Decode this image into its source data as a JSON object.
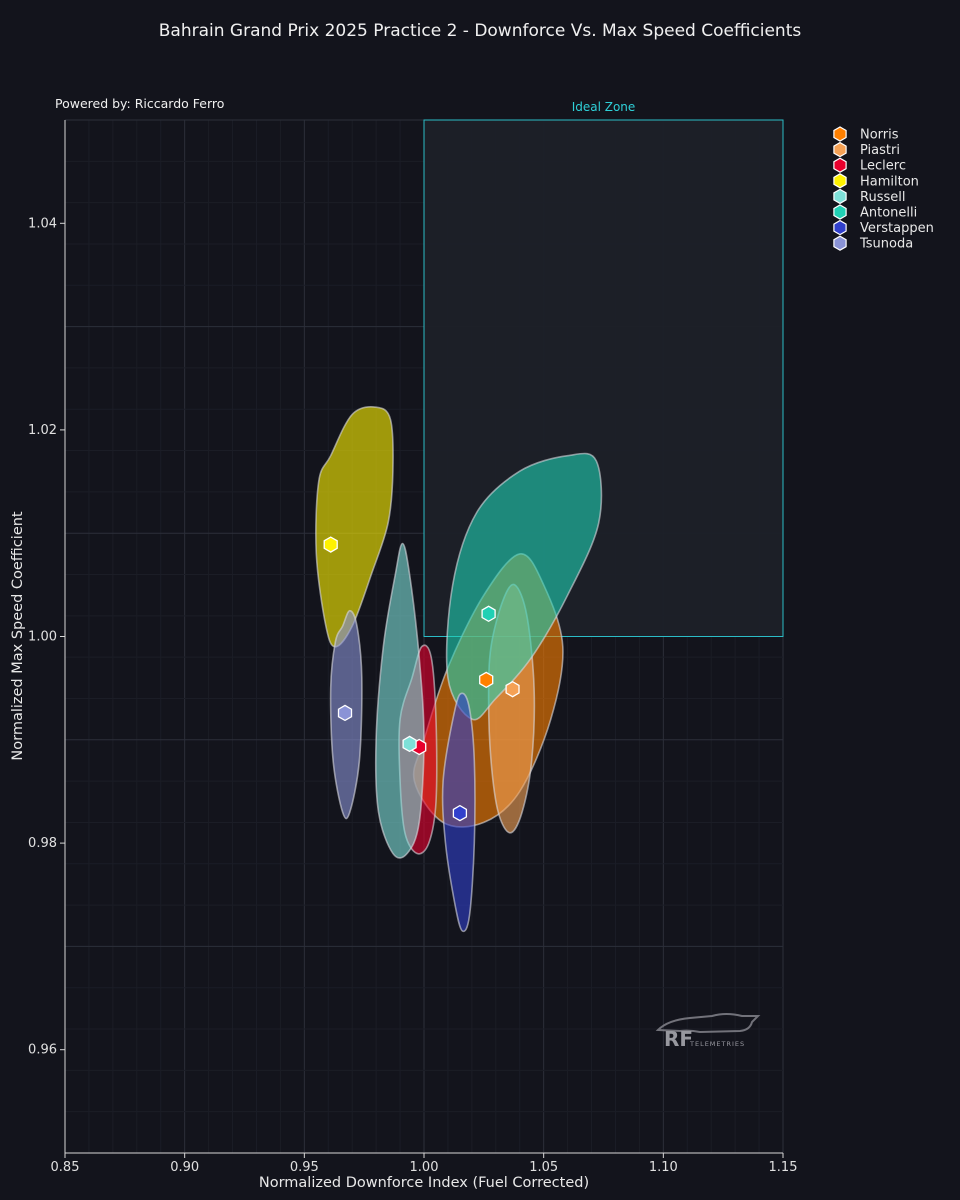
{
  "chart_data": {
    "type": "scatter",
    "title": "Bahrain Grand Prix 2025 Practice 2 - Downforce Vs. Max Speed Coefficients",
    "credit": "Powered by: Riccardo Ferro",
    "xlabel": "Normalized Downforce Index (Fuel Corrected)",
    "ylabel": "Normalized Max Speed Coefficient",
    "xlim": [
      0.85,
      1.15
    ],
    "ylim": [
      0.95,
      1.05
    ],
    "xticks": [
      "0.85",
      "0.90",
      "0.95",
      "1.00",
      "1.05",
      "1.10",
      "1.15"
    ],
    "yticks": [
      "0.96",
      "0.98",
      "1.00",
      "1.02",
      "1.04"
    ],
    "grid": true,
    "legend_position": "top-right",
    "ideal_zone": {
      "label": "Ideal Zone",
      "x": [
        1.0,
        1.15
      ],
      "y": [
        1.0,
        1.05
      ]
    },
    "series": [
      {
        "name": "Norris",
        "color": "#ff8000",
        "x": 1.026,
        "y": 0.9958,
        "region": [
          [
            1.0,
            0.99
          ],
          [
            1.01,
            0.997
          ],
          [
            1.025,
            1.004
          ],
          [
            1.04,
            1.008
          ],
          [
            1.05,
            1.005
          ],
          [
            1.058,
            0.999
          ],
          [
            1.053,
            0.992
          ],
          [
            1.04,
            0.985
          ],
          [
            1.025,
            0.982
          ],
          [
            1.008,
            0.982
          ],
          [
            0.996,
            0.986
          ]
        ]
      },
      {
        "name": "Piastri",
        "color": "#f5a155",
        "x": 1.037,
        "y": 0.9949,
        "region": [
          [
            1.028,
            0.999
          ],
          [
            1.033,
            1.0035
          ],
          [
            1.038,
            1.005
          ],
          [
            1.043,
            1.002
          ],
          [
            1.046,
            0.995
          ],
          [
            1.045,
            0.988
          ],
          [
            1.041,
            0.983
          ],
          [
            1.036,
            0.981
          ],
          [
            1.031,
            0.983
          ],
          [
            1.028,
            0.988
          ],
          [
            1.027,
            0.994
          ]
        ]
      },
      {
        "name": "Leclerc",
        "color": "#e8002d",
        "x": 0.998,
        "y": 0.9893,
        "region": [
          [
            0.995,
            0.996
          ],
          [
            0.999,
            0.999
          ],
          [
            1.003,
            0.998
          ],
          [
            1.005,
            0.992
          ],
          [
            1.005,
            0.984
          ],
          [
            1.002,
            0.98
          ],
          [
            0.997,
            0.979
          ],
          [
            0.992,
            0.981
          ],
          [
            0.99,
            0.986
          ],
          [
            0.99,
            0.992
          ]
        ]
      },
      {
        "name": "Hamilton",
        "color": "#fff200",
        "x": 0.961,
        "y": 1.0089,
        "region": [
          [
            0.961,
            1.0175
          ],
          [
            0.97,
            1.0215
          ],
          [
            0.98,
            1.0222
          ],
          [
            0.986,
            1.021
          ],
          [
            0.987,
            1.016
          ],
          [
            0.985,
            1.011
          ],
          [
            0.978,
            1.006
          ],
          [
            0.97,
            1.001
          ],
          [
            0.963,
            0.999
          ],
          [
            0.959,
            1.001
          ],
          [
            0.955,
            1.008
          ],
          [
            0.956,
            1.015
          ]
        ]
      },
      {
        "name": "Russell",
        "color": "#7ee0d8",
        "x": 0.994,
        "y": 0.9896,
        "region": [
          [
            0.988,
            1.006
          ],
          [
            0.991,
            1.009
          ],
          [
            0.994,
            1.006
          ],
          [
            0.998,
            0.998
          ],
          [
            1.0,
            0.99
          ],
          [
            0.998,
            0.982
          ],
          [
            0.993,
            0.979
          ],
          [
            0.987,
            0.979
          ],
          [
            0.981,
            0.983
          ],
          [
            0.98,
            0.99
          ],
          [
            0.983,
            0.999
          ]
        ]
      },
      {
        "name": "Antonelli",
        "color": "#20d0b4",
        "x": 1.027,
        "y": 1.0022,
        "region": [
          [
            1.012,
            1.005
          ],
          [
            1.022,
            1.012
          ],
          [
            1.04,
            1.016
          ],
          [
            1.06,
            1.0175
          ],
          [
            1.072,
            1.017
          ],
          [
            1.073,
            1.011
          ],
          [
            1.06,
            1.004
          ],
          [
            1.045,
            0.998
          ],
          [
            1.03,
            0.994
          ],
          [
            1.02,
            0.992
          ],
          [
            1.01,
            0.996
          ]
        ]
      },
      {
        "name": "Verstappen",
        "color": "#3140cc",
        "x": 1.015,
        "y": 0.9829,
        "region": [
          [
            1.013,
            0.993
          ],
          [
            1.016,
            0.9945
          ],
          [
            1.019,
            0.993
          ],
          [
            1.021,
            0.988
          ],
          [
            1.021,
            0.98
          ],
          [
            1.019,
            0.973
          ],
          [
            1.016,
            0.9715
          ],
          [
            1.013,
            0.974
          ],
          [
            1.009,
            0.98
          ],
          [
            1.008,
            0.986
          ]
        ]
      },
      {
        "name": "Tsunoda",
        "color": "#8a93d6",
        "x": 0.967,
        "y": 0.9926,
        "region": [
          [
            0.966,
            1.001
          ],
          [
            0.969,
            1.0025
          ],
          [
            0.972,
            1.001
          ],
          [
            0.974,
            0.996
          ],
          [
            0.973,
            0.988
          ],
          [
            0.969,
            0.983
          ],
          [
            0.966,
            0.983
          ],
          [
            0.962,
            0.988
          ],
          [
            0.961,
            0.995
          ],
          [
            0.963,
            0.9995
          ]
        ]
      }
    ],
    "watermark": {
      "brand": "RF",
      "sub": "TELEMETRIES"
    }
  }
}
